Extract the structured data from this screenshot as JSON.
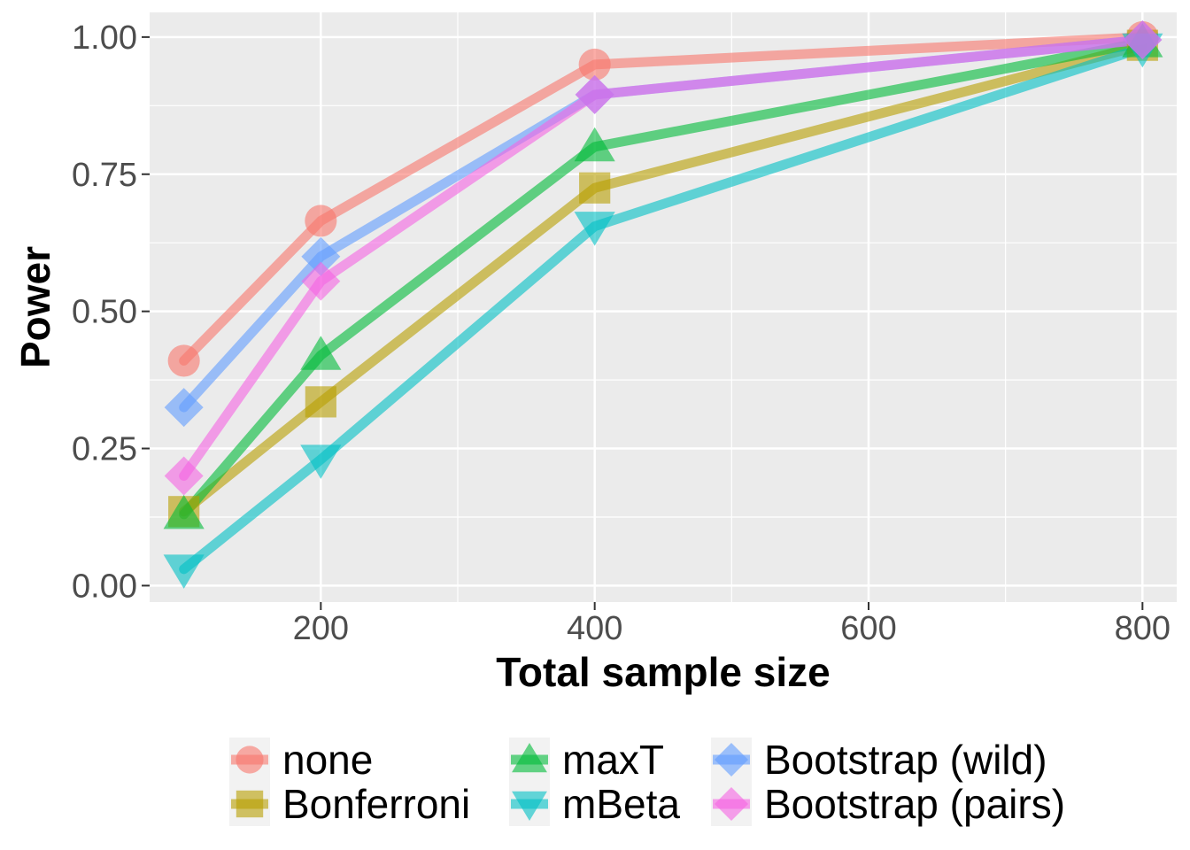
{
  "chart_data": {
    "type": "line",
    "title": "",
    "xlabel": "Total sample size",
    "ylabel": "Power",
    "x": [
      100,
      200,
      400,
      800
    ],
    "xlim": [
      75,
      825
    ],
    "ylim": [
      -0.03,
      1.045
    ],
    "x_ticks": [
      200,
      400,
      600,
      800
    ],
    "x_minor": [
      300,
      500,
      700
    ],
    "y_ticks": [
      0.0,
      0.25,
      0.5,
      0.75,
      1.0
    ],
    "y_tick_labels": [
      "0.00",
      "0.25",
      "0.50",
      "0.75",
      "1.00"
    ],
    "grid": true,
    "legend_position": "bottom",
    "series": [
      {
        "name": "none",
        "color": "#F8766D",
        "shape": "circle",
        "values": [
          0.41,
          0.665,
          0.95,
          1.0
        ]
      },
      {
        "name": "Bonferroni",
        "color": "#B79F00",
        "shape": "square",
        "values": [
          0.135,
          0.335,
          0.725,
          0.985
        ]
      },
      {
        "name": "maxT",
        "color": "#00BA38",
        "shape": "triangle-up",
        "values": [
          0.13,
          0.42,
          0.8,
          0.99
        ]
      },
      {
        "name": "mBeta",
        "color": "#00BFC4",
        "shape": "triangle-down",
        "values": [
          0.03,
          0.23,
          0.655,
          0.98
        ]
      },
      {
        "name": "Bootstrap (wild)",
        "color": "#619CFF",
        "shape": "diamond",
        "values": [
          0.325,
          0.6,
          0.895,
          0.995
        ]
      },
      {
        "name": "Bootstrap (pairs)",
        "color": "#F564E3",
        "shape": "diamond",
        "values": [
          0.2,
          0.555,
          0.895,
          0.995
        ]
      }
    ]
  }
}
